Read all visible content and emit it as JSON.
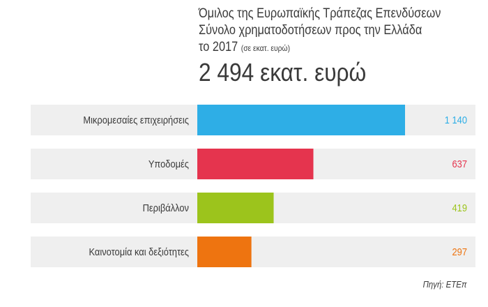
{
  "header": {
    "title_line1": "Όμιλος της Ευρωπαϊκής Τράπεζας Επενδύσεων",
    "title_line2": "Σύνολο χρηματοδοτήσεων προς την Ελλάδα",
    "title_line3": "το 2017",
    "unit_note": "(σε εκατ. ευρώ)",
    "total": "2 494 εκατ. ευρώ"
  },
  "chart_data": {
    "type": "bar",
    "orientation": "horizontal",
    "categories": [
      "Μικρομεσαίες επιχειρήσεις",
      "Υποδομές",
      "Περιβάλλον",
      "Καινοτομία και δεξιότητες"
    ],
    "values": [
      1140,
      637,
      419,
      297
    ],
    "value_labels": [
      "1 140",
      "637",
      "419",
      "297"
    ],
    "colors": [
      "#2eaee6",
      "#e5344e",
      "#9cc41c",
      "#ee7410"
    ],
    "xlim": [
      0,
      1140
    ],
    "grid": false,
    "legend": "none"
  },
  "footer": {
    "source": "Πηγή: ΕΤΕπ"
  }
}
